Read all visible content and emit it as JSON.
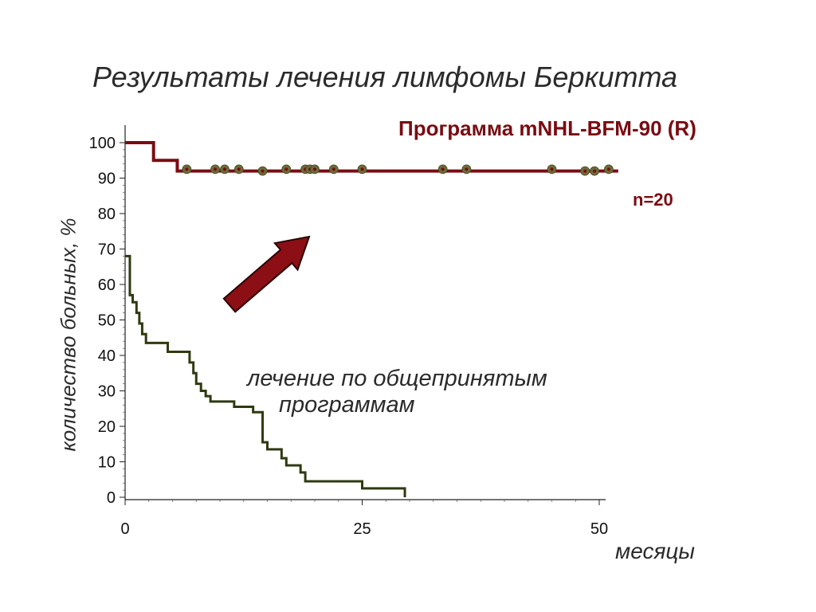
{
  "slide": {
    "title": "Результаты лечения лимфомы Беркитта",
    "program_label": "Программа mNHL-BFM-90 (R)",
    "n_label": "n=20",
    "annotation_line1": "лечение  по  общепринятым",
    "annotation_line2": "программам"
  },
  "colors": {
    "bfm_line": "#7a0c12",
    "conventional_line": "#2f3a10",
    "censor_marker": "#6b6b3a",
    "arrow": "#8b0f14"
  },
  "chart_data": {
    "type": "line",
    "title": "Результаты лечения лимфомы Беркитта",
    "xlabel": "месяцы",
    "ylabel": "количество больных, %",
    "xlim": [
      0,
      50
    ],
    "ylim": [
      0,
      100
    ],
    "x_ticks": [
      0,
      25,
      50
    ],
    "y_ticks": [
      0,
      10,
      20,
      30,
      40,
      50,
      60,
      70,
      80,
      90,
      100
    ],
    "grid": false,
    "series": [
      {
        "name": "Программа mNHL-BFM-90 (R)",
        "step": true,
        "x": [
          0,
          3,
          5.5,
          52
        ],
        "y": [
          100,
          95,
          92,
          92
        ],
        "censored": [
          {
            "x": 6.5,
            "y": 92.5
          },
          {
            "x": 9.5,
            "y": 92.5
          },
          {
            "x": 10.5,
            "y": 92.5
          },
          {
            "x": 12,
            "y": 92.5
          },
          {
            "x": 14.5,
            "y": 92
          },
          {
            "x": 17,
            "y": 92.5
          },
          {
            "x": 19,
            "y": 92.5
          },
          {
            "x": 19.5,
            "y": 92.5
          },
          {
            "x": 20,
            "y": 92.5
          },
          {
            "x": 22,
            "y": 92.5
          },
          {
            "x": 25,
            "y": 92.5
          },
          {
            "x": 33.5,
            "y": 92.5
          },
          {
            "x": 36,
            "y": 92.5
          },
          {
            "x": 45,
            "y": 92.5
          },
          {
            "x": 48.5,
            "y": 92
          },
          {
            "x": 49.5,
            "y": 92
          },
          {
            "x": 51,
            "y": 92.5
          }
        ]
      },
      {
        "name": "лечение  по  общепринятым программам",
        "step": true,
        "x": [
          0,
          0.5,
          0.8,
          1.2,
          1.5,
          1.8,
          2.2,
          4.5,
          6.8,
          7.2,
          7.5,
          8,
          8.5,
          9,
          11.5,
          13.5,
          14.5,
          15,
          16.5,
          17,
          18.5,
          19,
          25,
          29.5
        ],
        "y": [
          68,
          57,
          55,
          52,
          49,
          46,
          43.5,
          41,
          38,
          35,
          32,
          30,
          28.5,
          27,
          25.5,
          24,
          15.5,
          13.5,
          11,
          9,
          7,
          4.5,
          2.5,
          0.5
        ]
      }
    ]
  }
}
